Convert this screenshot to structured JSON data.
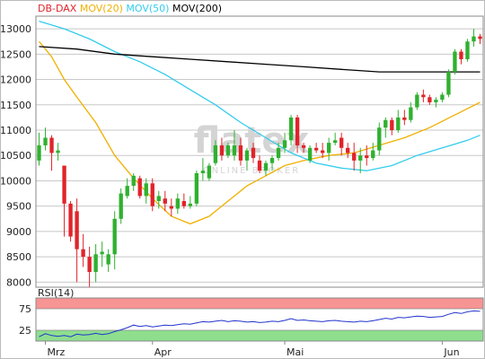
{
  "colors": {
    "up": "#2fb12f",
    "down": "#e0242a",
    "mov20": "#f0b000",
    "mov50": "#33ccee",
    "mov200": "#000000",
    "rsi": "#2233cc",
    "rsi_over": "#f79494",
    "rsi_under": "#8ede8e",
    "grid": "#c8c8c8",
    "axis": "#888888",
    "text": "#222222",
    "watermark": "#d4d4d4"
  },
  "watermark": {
    "logo": "flatex",
    "tagline": "ONLINE BROKER"
  },
  "chart_data": [
    {
      "type": "candlestick",
      "legend": [
        {
          "key": "symbol",
          "label": "DB-DAX",
          "color": "#e0242a"
        },
        {
          "key": "mov20",
          "label": "MOV(20)",
          "color": "#f0b000"
        },
        {
          "key": "mov50",
          "label": "MOV(50)",
          "color": "#33ccee"
        },
        {
          "key": "mov200",
          "label": "MOV(200)",
          "color": "#000000"
        }
      ],
      "legend_position": "top-left",
      "ylim": [
        7900,
        13250
      ],
      "yticks": [
        8000,
        8500,
        9000,
        9500,
        10000,
        10500,
        11000,
        11500,
        12000,
        12500,
        13000
      ],
      "grid": true,
      "x_count": 71,
      "xtick_labels": [
        {
          "i": 1,
          "label": "Mrz"
        },
        {
          "i": 18,
          "label": "Apr"
        },
        {
          "i": 39,
          "label": "Mai"
        },
        {
          "i": 64,
          "label": "Jun"
        }
      ],
      "candles": [
        [
          0,
          10400,
          10950,
          10300,
          10700
        ],
        [
          1,
          10700,
          11050,
          10600,
          10850
        ],
        [
          2,
          10850,
          10900,
          10200,
          10550
        ],
        [
          3,
          10550,
          10750,
          10400,
          10600
        ],
        [
          4,
          10300,
          10300,
          8900,
          9550
        ],
        [
          5,
          9550,
          9600,
          8800,
          8900
        ],
        [
          6,
          9400,
          9650,
          8000,
          8650
        ],
        [
          7,
          8650,
          8950,
          8300,
          8500
        ],
        [
          8,
          8500,
          8700,
          7900,
          8200
        ],
        [
          9,
          8200,
          8750,
          8000,
          8550
        ],
        [
          10,
          8550,
          8800,
          8300,
          8600
        ],
        [
          11,
          8350,
          8650,
          8200,
          8550
        ],
        [
          12,
          8550,
          9400,
          8250,
          9250
        ],
        [
          13,
          9250,
          9850,
          9150,
          9750
        ],
        [
          14,
          9700,
          10050,
          9650,
          9900
        ],
        [
          15,
          9900,
          10150,
          9800,
          10100
        ],
        [
          16,
          10050,
          10100,
          9650,
          9700
        ],
        [
          17,
          9700,
          10050,
          9550,
          9950
        ],
        [
          18,
          9950,
          10050,
          9400,
          9500
        ],
        [
          19,
          9600,
          9800,
          9450,
          9700
        ],
        [
          20,
          9650,
          9800,
          9400,
          9550
        ],
        [
          21,
          9500,
          9650,
          9300,
          9450
        ],
        [
          22,
          9450,
          9750,
          9350,
          9650
        ],
        [
          23,
          9600,
          9750,
          9450,
          9500
        ],
        [
          24,
          9500,
          9700,
          9450,
          9550
        ],
        [
          25,
          9550,
          10200,
          9500,
          10150
        ],
        [
          26,
          10150,
          10450,
          10000,
          10200
        ],
        [
          27,
          10050,
          10350,
          10000,
          10300
        ],
        [
          28,
          10350,
          10800,
          10300,
          10700
        ],
        [
          29,
          10700,
          10850,
          10400,
          10500
        ],
        [
          30,
          10500,
          10750,
          10450,
          10700
        ],
        [
          31,
          10500,
          11000,
          10400,
          10700
        ],
        [
          32,
          10700,
          10850,
          10300,
          10400
        ],
        [
          33,
          10400,
          10650,
          10200,
          10600
        ],
        [
          34,
          10650,
          10750,
          10350,
          10450
        ],
        [
          35,
          10400,
          10500,
          10150,
          10200
        ],
        [
          36,
          10200,
          10400,
          10100,
          10350
        ],
        [
          37,
          10350,
          10500,
          10200,
          10450
        ],
        [
          38,
          10450,
          10750,
          10400,
          10650
        ],
        [
          39,
          10650,
          10950,
          10550,
          10800
        ],
        [
          40,
          10800,
          11300,
          10700,
          11250
        ],
        [
          41,
          11250,
          11300,
          10550,
          10700
        ],
        [
          42,
          10700,
          10750,
          10550,
          10650
        ],
        [
          43,
          10400,
          10700,
          10350,
          10650
        ],
        [
          44,
          10650,
          10750,
          10550,
          10600
        ],
        [
          45,
          10600,
          10750,
          10450,
          10550
        ],
        [
          46,
          10550,
          10850,
          10400,
          10750
        ],
        [
          47,
          10750,
          10950,
          10700,
          10800
        ],
        [
          48,
          10850,
          10950,
          10500,
          10650
        ],
        [
          49,
          10650,
          10750,
          10450,
          10550
        ],
        [
          50,
          10550,
          10750,
          10200,
          10400
        ],
        [
          51,
          10400,
          10650,
          10150,
          10500
        ],
        [
          52,
          10500,
          10700,
          10300,
          10450
        ],
        [
          53,
          10450,
          10750,
          10400,
          10600
        ],
        [
          54,
          10600,
          11150,
          10500,
          11050
        ],
        [
          55,
          11050,
          11250,
          10850,
          11200
        ],
        [
          56,
          11200,
          11250,
          10900,
          11000
        ],
        [
          57,
          11000,
          11400,
          10950,
          11250
        ],
        [
          58,
          11250,
          11400,
          11100,
          11200
        ],
        [
          59,
          11200,
          11550,
          11150,
          11450
        ],
        [
          60,
          11450,
          11750,
          11400,
          11700
        ],
        [
          61,
          11700,
          11800,
          11550,
          11650
        ],
        [
          62,
          11650,
          11700,
          11500,
          11550
        ],
        [
          63,
          11550,
          11650,
          11450,
          11600
        ],
        [
          64,
          11600,
          11750,
          11550,
          11700
        ],
        [
          65,
          11700,
          12200,
          11650,
          12150
        ],
        [
          66,
          12150,
          12600,
          12100,
          12550
        ],
        [
          67,
          12550,
          12600,
          12300,
          12400
        ],
        [
          68,
          12400,
          12800,
          12350,
          12750
        ],
        [
          69,
          12750,
          13000,
          12650,
          12850
        ],
        [
          70,
          12850,
          12900,
          12700,
          12800
        ]
      ],
      "series": [
        {
          "key": "mov20",
          "points": [
            [
              0,
              12750
            ],
            [
              2,
              12450
            ],
            [
              4,
              12000
            ],
            [
              6,
              11650
            ],
            [
              9,
              11150
            ],
            [
              12,
              10500
            ],
            [
              15,
              10050
            ],
            [
              18,
              9650
            ],
            [
              21,
              9300
            ],
            [
              24,
              9150
            ],
            [
              27,
              9300
            ],
            [
              30,
              9600
            ],
            [
              33,
              9900
            ],
            [
              36,
              10100
            ],
            [
              39,
              10300
            ],
            [
              42,
              10400
            ],
            [
              46,
              10500
            ],
            [
              50,
              10550
            ],
            [
              54,
              10700
            ],
            [
              58,
              10850
            ],
            [
              62,
              11050
            ],
            [
              66,
              11300
            ],
            [
              70,
              11550
            ]
          ]
        },
        {
          "key": "mov50",
          "points": [
            [
              0,
              13150
            ],
            [
              4,
              13000
            ],
            [
              8,
              12800
            ],
            [
              12,
              12550
            ],
            [
              16,
              12350
            ],
            [
              20,
              12100
            ],
            [
              24,
              11800
            ],
            [
              28,
              11500
            ],
            [
              32,
              11150
            ],
            [
              36,
              10850
            ],
            [
              40,
              10550
            ],
            [
              44,
              10350
            ],
            [
              48,
              10250
            ],
            [
              52,
              10200
            ],
            [
              56,
              10300
            ],
            [
              60,
              10500
            ],
            [
              64,
              10650
            ],
            [
              68,
              10800
            ],
            [
              70,
              10900
            ]
          ]
        },
        {
          "key": "mov200",
          "points": [
            [
              0,
              12650
            ],
            [
              6,
              12600
            ],
            [
              12,
              12500
            ],
            [
              18,
              12450
            ],
            [
              24,
              12400
            ],
            [
              30,
              12350
            ],
            [
              36,
              12300
            ],
            [
              42,
              12250
            ],
            [
              48,
              12200
            ],
            [
              54,
              12150
            ],
            [
              60,
              12150
            ],
            [
              64,
              12150
            ],
            [
              70,
              12150
            ]
          ]
        }
      ]
    },
    {
      "type": "line",
      "legend": [
        {
          "key": "rsi",
          "label": "RSI(14)"
        }
      ],
      "legend_position": "top-left",
      "ylim": [
        0,
        100
      ],
      "yticks": [
        25,
        75
      ],
      "bands": {
        "overbought": [
          75,
          100
        ],
        "oversold": [
          0,
          25
        ]
      },
      "series": [
        {
          "key": "rsi",
          "values": [
            10,
            17,
            13,
            11,
            13,
            10,
            16,
            14,
            15,
            18,
            15,
            17,
            22,
            26,
            31,
            37,
            34,
            36,
            33,
            35,
            37,
            36,
            38,
            40,
            39,
            42,
            45,
            44,
            46,
            48,
            45,
            47,
            46,
            44,
            45,
            43,
            44,
            46,
            45,
            48,
            52,
            48,
            49,
            47,
            46,
            45,
            47,
            48,
            46,
            45,
            44,
            46,
            45,
            47,
            50,
            53,
            51,
            55,
            54,
            56,
            58,
            57,
            55,
            56,
            57,
            62,
            66,
            64,
            68,
            70,
            69
          ]
        }
      ]
    }
  ]
}
